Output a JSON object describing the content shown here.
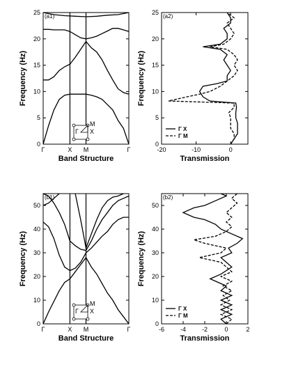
{
  "chart_data": [
    {
      "panel_label": "(a1)",
      "type": "line",
      "xlabel": "Band Structure",
      "ylabel": "Frequency (Hz)",
      "ylim": [
        0,
        25
      ],
      "yticks": [
        "0",
        "5",
        "10",
        "15",
        "20",
        "25"
      ],
      "xticks": [
        "Γ",
        "X",
        "M",
        "Γ"
      ],
      "inset": {
        "labels": [
          "M",
          "X",
          "Γ"
        ]
      },
      "series": [
        {
          "values": [
            [
              0,
              0
            ],
            [
              0.1,
              3.5
            ],
            [
              0.2,
              6.5
            ],
            [
              0.3,
              8.5
            ],
            [
              0.4,
              9.3
            ],
            [
              0.5,
              9.5
            ],
            [
              0.6,
              9.5
            ],
            [
              0.7,
              9.5
            ],
            [
              0.8,
              9.5
            ],
            [
              0.9,
              9.3
            ],
            [
              1.0,
              9.0
            ],
            [
              1.1,
              8.5
            ],
            [
              1.2,
              7.5
            ],
            [
              1.3,
              6.5
            ],
            [
              1.4,
              4.5
            ],
            [
              1.5,
              3.0
            ],
            [
              1.6,
              0
            ]
          ]
        },
        {
          "values": [
            [
              0,
              12.2
            ],
            [
              0.1,
              12.2
            ],
            [
              0.2,
              12.8
            ],
            [
              0.3,
              14
            ],
            [
              0.4,
              14.7
            ],
            [
              0.5,
              15.2
            ],
            [
              0.6,
              16.5
            ],
            [
              0.7,
              18.0
            ],
            [
              0.8,
              19.5
            ],
            [
              0.9,
              18.3
            ],
            [
              1.0,
              17.5
            ],
            [
              1.1,
              16
            ],
            [
              1.2,
              14
            ],
            [
              1.3,
              12.2
            ],
            [
              1.4,
              10.5
            ],
            [
              1.5,
              9.8
            ],
            [
              1.6,
              9.5
            ]
          ]
        },
        {
          "values": [
            [
              0,
              21.8
            ],
            [
              0.1,
              21.8
            ],
            [
              0.2,
              21.7
            ],
            [
              0.3,
              21.7
            ],
            [
              0.4,
              21.7
            ],
            [
              0.5,
              21.4
            ],
            [
              0.6,
              20.8
            ],
            [
              0.7,
              20.2
            ],
            [
              0.8,
              20.0
            ],
            [
              0.9,
              20.2
            ],
            [
              1.0,
              20.5
            ],
            [
              1.1,
              21
            ],
            [
              1.2,
              21.5
            ],
            [
              1.3,
              22
            ],
            [
              1.4,
              22
            ],
            [
              1.5,
              21.7
            ],
            [
              1.6,
              21.4
            ]
          ]
        },
        {
          "values": [
            [
              0,
              25
            ],
            [
              0.2,
              24.6
            ],
            [
              0.4,
              24.4
            ],
            [
              0.6,
              24.3
            ],
            [
              0.8,
              24.2
            ],
            [
              1.0,
              24.3
            ],
            [
              1.2,
              24.5
            ],
            [
              1.4,
              24.6
            ],
            [
              1.6,
              25
            ]
          ]
        }
      ]
    },
    {
      "panel_label": "(a2)",
      "type": "line",
      "xlabel": "Transmission",
      "ylabel": "Frequency (Hz)",
      "xlim": [
        -20,
        5
      ],
      "ylim": [
        0,
        25
      ],
      "xticks": [
        "-20",
        "-10",
        "0"
      ],
      "yticks": [
        "0",
        "5",
        "10",
        "15",
        "20",
        "25"
      ],
      "series": [
        {
          "name": "Γ X",
          "style": "solid",
          "points": [
            [
              0,
              0
            ],
            [
              1,
              1
            ],
            [
              2,
              2
            ],
            [
              2,
              3
            ],
            [
              2,
              4
            ],
            [
              1.5,
              5
            ],
            [
              1.5,
              6
            ],
            [
              1.7,
              7
            ],
            [
              1.5,
              7.8
            ],
            [
              -6,
              8.2
            ],
            [
              -8,
              9
            ],
            [
              -9,
              10
            ],
            [
              -8,
              11
            ],
            [
              -4,
              11.5
            ],
            [
              -1,
              12
            ],
            [
              -1,
              13
            ],
            [
              0,
              14
            ],
            [
              -1,
              15
            ],
            [
              -2,
              16
            ],
            [
              -1,
              17
            ],
            [
              -3,
              18
            ],
            [
              -8,
              18.5
            ],
            [
              -3,
              19
            ],
            [
              -1,
              20
            ],
            [
              -1,
              21
            ],
            [
              -2,
              22
            ],
            [
              0,
              23
            ],
            [
              0,
              24
            ],
            [
              -1,
              25
            ]
          ]
        },
        {
          "name": "Γ M",
          "style": "dashed",
          "points": [
            [
              0,
              0
            ],
            [
              1,
              1
            ],
            [
              1,
              2
            ],
            [
              0,
              3
            ],
            [
              0,
              4
            ],
            [
              0,
              5
            ],
            [
              -0.5,
              6
            ],
            [
              1,
              7
            ],
            [
              1,
              7.8
            ],
            [
              -18,
              8.2
            ],
            [
              -14,
              8.8
            ],
            [
              -9,
              9.5
            ],
            [
              -6,
              10
            ],
            [
              -3,
              11
            ],
            [
              -1,
              12
            ],
            [
              1,
              13
            ],
            [
              2,
              14
            ],
            [
              1,
              15
            ],
            [
              2,
              16
            ],
            [
              1,
              17
            ],
            [
              -1,
              18
            ],
            [
              -6,
              18.5
            ],
            [
              -2,
              19
            ],
            [
              0,
              20
            ],
            [
              1,
              21
            ],
            [
              0,
              22
            ],
            [
              -1,
              23
            ],
            [
              1,
              24
            ],
            [
              -1,
              25
            ]
          ]
        }
      ]
    },
    {
      "panel_label": "(b1)",
      "type": "line",
      "xlabel": "Band Structure",
      "ylabel": "Frequency (Hz)",
      "ylim": [
        0,
        55
      ],
      "yticks": [
        "0",
        "10",
        "20",
        "30",
        "40",
        "50"
      ],
      "xticks": [
        "Γ",
        "X",
        "M",
        "Γ"
      ],
      "inset": {
        "labels": [
          "M",
          "X",
          "Γ"
        ]
      },
      "series": [
        {
          "values": [
            [
              0,
              0
            ],
            [
              0.1,
              5
            ],
            [
              0.2,
              9.5
            ],
            [
              0.3,
              14
            ],
            [
              0.4,
              17.5
            ],
            [
              0.5,
              19
            ],
            [
              0.6,
              22
            ],
            [
              0.7,
              25
            ],
            [
              0.8,
              28
            ],
            [
              0.9,
              24
            ],
            [
              1.0,
              21
            ],
            [
              1.1,
              17
            ],
            [
              1.2,
              13
            ],
            [
              1.3,
              10
            ],
            [
              1.4,
              6
            ],
            [
              1.5,
              3
            ],
            [
              1.6,
              0
            ]
          ]
        },
        {
          "values": [
            [
              0,
              43
            ],
            [
              0.1,
              41
            ],
            [
              0.2,
              36
            ],
            [
              0.3,
              29
            ],
            [
              0.4,
              24
            ],
            [
              0.5,
              22.5
            ],
            [
              0.6,
              23.5
            ],
            [
              0.7,
              26
            ],
            [
              0.8,
              30
            ],
            [
              0.9,
              32
            ],
            [
              1.0,
              34.5
            ],
            [
              1.1,
              37
            ],
            [
              1.2,
              39
            ],
            [
              1.3,
              42
            ],
            [
              1.4,
              44
            ],
            [
              1.5,
              45
            ],
            [
              1.6,
              45
            ]
          ]
        },
        {
          "values": [
            [
              0,
              55
            ],
            [
              0.1,
              54
            ],
            [
              0.2,
              51
            ],
            [
              0.3,
              47
            ],
            [
              0.4,
              42
            ],
            [
              0.5,
              35
            ],
            [
              0.6,
              33
            ],
            [
              0.7,
              31.5
            ],
            [
              0.8,
              31
            ],
            [
              0.9,
              35
            ],
            [
              1.0,
              40
            ],
            [
              1.1,
              44
            ],
            [
              1.2,
              47
            ],
            [
              1.3,
              50
            ],
            [
              1.4,
              52
            ],
            [
              1.5,
              53
            ],
            [
              1.6,
              54
            ]
          ]
        },
        {
          "values": [
            [
              0,
              50
            ],
            [
              0.1,
              51
            ],
            [
              0.2,
              53
            ],
            [
              0.3,
              55
            ]
          ]
        },
        {
          "values": [
            [
              0.6,
              55
            ],
            [
              0.7,
              44
            ],
            [
              0.8,
              32
            ],
            [
              0.9,
              38
            ],
            [
              1.0,
              44
            ],
            [
              1.1,
              49
            ],
            [
              1.2,
              52
            ],
            [
              1.3,
              53.5
            ],
            [
              1.4,
              54
            ],
            [
              1.5,
              55
            ]
          ]
        }
      ]
    },
    {
      "panel_label": "(b2)",
      "type": "line",
      "xlabel": "Transmission",
      "ylabel": "Frequency (Hz)",
      "xlim": [
        -6,
        2
      ],
      "ylim": [
        0,
        55
      ],
      "xticks": [
        "-6",
        "-4",
        "-2",
        "0",
        "2"
      ],
      "yticks": [
        "0",
        "10",
        "20",
        "30",
        "40",
        "50"
      ],
      "series": [
        {
          "name": "Γ X",
          "style": "solid",
          "points": [
            [
              0,
              0
            ],
            [
              -0.5,
              2
            ],
            [
              0.5,
              4
            ],
            [
              -0.5,
              6
            ],
            [
              0.5,
              8
            ],
            [
              -0.5,
              10
            ],
            [
              0.5,
              12
            ],
            [
              -0.5,
              14
            ],
            [
              0,
              16
            ],
            [
              -1.5,
              19
            ],
            [
              -0.5,
              21
            ],
            [
              0.5,
              24
            ],
            [
              0,
              26
            ],
            [
              -0.5,
              28
            ],
            [
              0.5,
              30
            ],
            [
              0.2,
              32
            ],
            [
              1,
              34
            ],
            [
              1.5,
              36
            ],
            [
              0.5,
              38
            ],
            [
              -0.5,
              40
            ],
            [
              -1,
              42
            ],
            [
              -2,
              44
            ],
            [
              -3,
              45
            ],
            [
              -4,
              47
            ],
            [
              -3,
              49
            ],
            [
              -2,
              50
            ],
            [
              -1,
              52
            ],
            [
              0,
              54
            ],
            [
              -0.5,
              55
            ]
          ]
        },
        {
          "name": "Γ M",
          "style": "dashed",
          "points": [
            [
              0,
              0
            ],
            [
              0.5,
              2
            ],
            [
              -0.5,
              4
            ],
            [
              0.5,
              6
            ],
            [
              -0.5,
              8
            ],
            [
              0.3,
              10
            ],
            [
              -0.3,
              12
            ],
            [
              0.5,
              14
            ],
            [
              -0.3,
              16
            ],
            [
              0.5,
              18
            ],
            [
              -0.5,
              20
            ],
            [
              0.5,
              22
            ],
            [
              0,
              24
            ],
            [
              -0.5,
              26
            ],
            [
              -2.5,
              28
            ],
            [
              -0.5,
              30
            ],
            [
              0,
              32
            ],
            [
              -2,
              34
            ],
            [
              -3,
              35.5
            ],
            [
              -1,
              37
            ],
            [
              0,
              39
            ],
            [
              0.5,
              41
            ],
            [
              0,
              43
            ],
            [
              0.5,
              45
            ],
            [
              0,
              47
            ],
            [
              0.5,
              49
            ],
            [
              1,
              51
            ],
            [
              0.5,
              53
            ],
            [
              1,
              55
            ]
          ]
        }
      ]
    }
  ]
}
